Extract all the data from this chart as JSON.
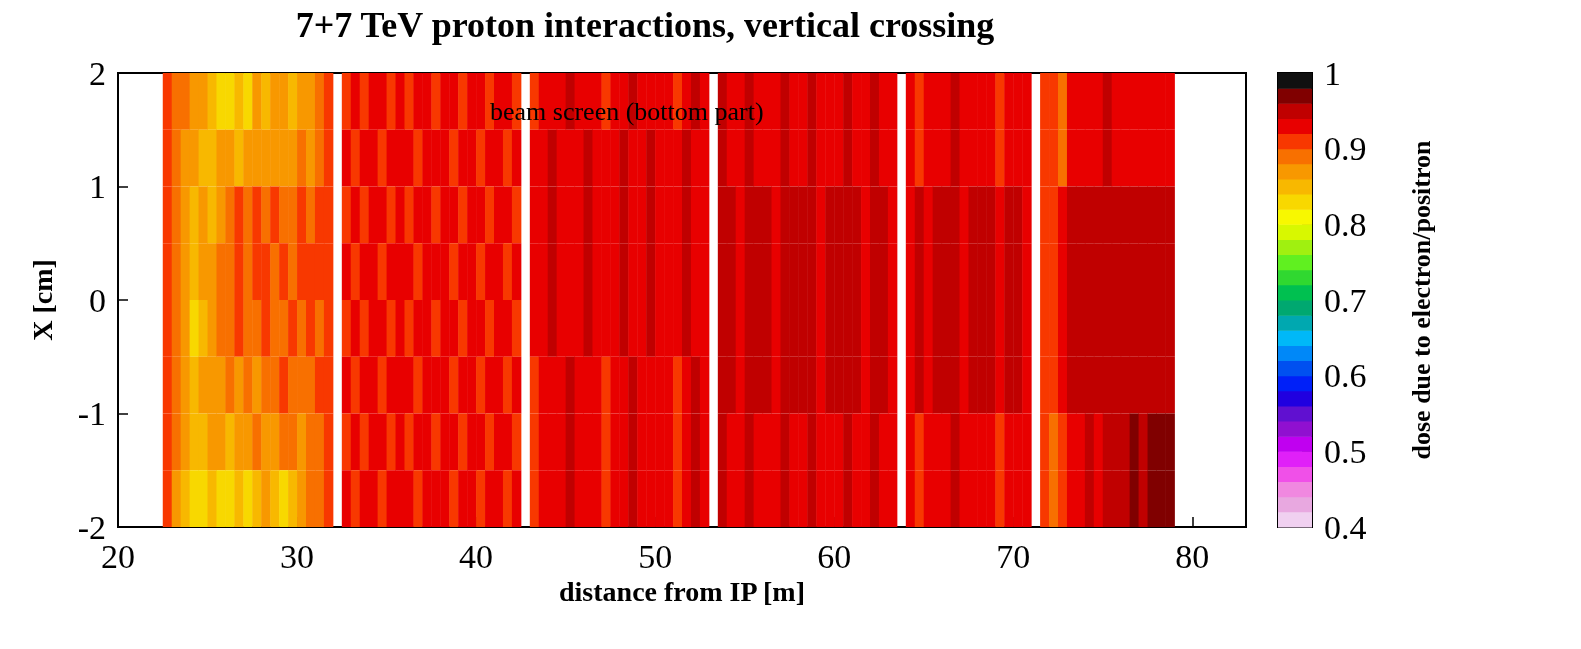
{
  "chart_data": {
    "type": "heatmap",
    "title": "7+7 TeV proton interactions, vertical crossing",
    "xlabel": "distance from IP [m]",
    "ylabel": "X [cm]",
    "clabel": "dose due to electron/positron",
    "annotations": [
      "beam screen (bottom part)"
    ],
    "cells": [
      [
        null,
        null,
        null,
        null,
        null,
        0.91,
        0.89,
        0.89,
        0.87,
        0.87,
        0.85,
        0.83,
        0.83,
        0.85,
        0.83,
        0.87,
        0.85,
        0.87,
        0.87,
        0.85,
        0.87,
        0.87,
        0.89,
        0.91,
        null,
        0.91,
        0.93,
        0.91,
        0.93,
        0.93,
        0.91,
        0.93,
        0.91,
        0.93,
        0.93,
        0.91,
        0.93,
        0.93,
        0.91,
        0.93,
        0.93,
        0.91,
        0.93,
        0.93,
        0.91,
        null,
        0.91,
        0.93,
        0.93,
        0.93,
        0.95,
        0.93,
        0.93,
        0.93,
        0.91,
        0.93,
        0.93,
        0.95,
        0.93,
        0.93,
        0.93,
        0.93,
        0.91,
        0.93,
        0.95,
        0.93,
        null,
        0.95,
        0.93,
        0.93,
        0.95,
        0.93,
        0.93,
        0.93,
        0.95,
        0.93,
        0.93,
        0.95,
        0.93,
        0.93,
        0.93,
        0.95,
        0.93,
        0.93,
        0.95,
        0.93,
        0.93,
        null,
        0.93,
        0.91,
        0.93,
        0.93,
        0.93,
        0.95,
        0.93,
        0.93,
        0.93,
        0.93,
        0.91,
        0.93,
        0.93,
        0.93,
        null,
        0.91,
        0.91,
        0.89,
        0.93,
        0.93,
        0.93,
        0.93,
        0.95,
        0.93,
        0.93,
        0.93,
        0.93,
        0.93,
        0.93,
        0.93,
        null,
        null,
        null,
        null,
        null,
        null,
        null,
        null
      ],
      [
        null,
        null,
        null,
        null,
        null,
        0.91,
        0.89,
        0.87,
        0.87,
        0.85,
        0.85,
        0.87,
        0.87,
        0.85,
        0.87,
        0.87,
        0.87,
        0.87,
        0.87,
        0.87,
        0.89,
        0.87,
        0.89,
        0.91,
        null,
        0.93,
        0.91,
        0.93,
        0.93,
        0.91,
        0.93,
        0.93,
        0.93,
        0.91,
        0.93,
        0.93,
        0.93,
        0.91,
        0.93,
        0.93,
        0.91,
        0.93,
        0.93,
        0.91,
        0.93,
        null,
        0.93,
        0.93,
        0.95,
        0.93,
        0.93,
        0.93,
        0.95,
        0.93,
        0.93,
        0.93,
        0.95,
        0.93,
        0.93,
        0.95,
        0.93,
        0.93,
        0.93,
        0.95,
        0.93,
        0.93,
        null,
        0.95,
        0.93,
        0.93,
        0.95,
        0.93,
        0.93,
        0.93,
        0.95,
        0.93,
        0.93,
        0.95,
        0.93,
        0.93,
        0.93,
        0.95,
        0.93,
        0.93,
        0.95,
        0.93,
        0.93,
        null,
        0.93,
        0.91,
        0.93,
        0.93,
        0.93,
        0.95,
        0.93,
        0.93,
        0.93,
        0.93,
        0.91,
        0.93,
        0.93,
        0.93,
        null,
        0.91,
        0.91,
        0.89,
        0.93,
        0.93,
        0.93,
        0.93,
        0.95,
        0.93,
        0.93,
        0.93,
        0.93,
        0.93,
        0.93,
        0.93,
        null,
        null,
        null,
        null,
        null,
        null,
        null,
        null
      ],
      [
        null,
        null,
        null,
        null,
        null,
        0.91,
        0.89,
        0.87,
        0.85,
        0.87,
        0.85,
        0.87,
        0.89,
        0.91,
        0.89,
        0.91,
        0.89,
        0.91,
        0.89,
        0.89,
        0.91,
        0.89,
        0.91,
        0.91,
        null,
        0.91,
        0.93,
        0.91,
        0.93,
        0.93,
        0.91,
        0.93,
        0.91,
        0.93,
        0.93,
        0.91,
        0.93,
        0.93,
        0.91,
        0.93,
        0.93,
        0.91,
        0.93,
        0.93,
        0.91,
        null,
        0.93,
        0.93,
        0.95,
        0.93,
        0.93,
        0.93,
        0.95,
        0.93,
        0.93,
        0.93,
        0.95,
        0.93,
        0.93,
        0.95,
        0.93,
        0.93,
        0.93,
        0.95,
        0.93,
        0.93,
        null,
        0.95,
        0.95,
        0.93,
        0.95,
        0.95,
        0.95,
        0.93,
        0.95,
        0.95,
        0.95,
        0.95,
        0.93,
        0.95,
        0.95,
        0.95,
        0.95,
        0.93,
        0.95,
        0.95,
        0.93,
        null,
        0.93,
        0.95,
        0.93,
        0.95,
        0.95,
        0.95,
        0.93,
        0.95,
        0.95,
        0.95,
        0.93,
        0.95,
        0.95,
        0.93,
        null,
        0.91,
        0.91,
        0.93,
        0.95,
        0.95,
        0.95,
        0.95,
        0.95,
        0.95,
        0.95,
        0.95,
        0.95,
        0.95,
        0.95,
        0.95,
        null,
        null,
        null,
        null,
        null,
        null,
        null,
        null
      ],
      [
        null,
        null,
        null,
        null,
        null,
        0.91,
        0.89,
        0.87,
        0.85,
        0.87,
        0.87,
        0.89,
        0.89,
        0.91,
        0.89,
        0.91,
        0.91,
        0.89,
        0.91,
        0.89,
        0.91,
        0.91,
        0.91,
        0.91,
        null,
        0.93,
        0.91,
        0.93,
        0.93,
        0.91,
        0.93,
        0.93,
        0.93,
        0.91,
        0.93,
        0.93,
        0.93,
        0.91,
        0.93,
        0.93,
        0.91,
        0.93,
        0.93,
        0.91,
        0.93,
        null,
        0.93,
        0.93,
        0.95,
        0.93,
        0.93,
        0.93,
        0.95,
        0.93,
        0.93,
        0.93,
        0.95,
        0.93,
        0.93,
        0.95,
        0.93,
        0.93,
        0.93,
        0.95,
        0.93,
        0.93,
        null,
        0.95,
        0.95,
        0.93,
        0.95,
        0.95,
        0.95,
        0.93,
        0.95,
        0.95,
        0.95,
        0.95,
        0.93,
        0.95,
        0.95,
        0.95,
        0.95,
        0.93,
        0.95,
        0.95,
        0.93,
        null,
        0.93,
        0.95,
        0.93,
        0.95,
        0.95,
        0.95,
        0.93,
        0.95,
        0.95,
        0.95,
        0.93,
        0.95,
        0.95,
        0.93,
        null,
        0.91,
        0.91,
        0.93,
        0.95,
        0.95,
        0.95,
        0.95,
        0.95,
        0.95,
        0.95,
        0.95,
        0.95,
        0.95,
        0.95,
        0.95,
        null,
        null,
        null,
        null,
        null,
        null,
        null,
        null
      ],
      [
        null,
        null,
        null,
        null,
        null,
        0.91,
        0.89,
        0.87,
        0.83,
        0.85,
        0.87,
        0.89,
        0.89,
        0.91,
        0.89,
        0.89,
        0.91,
        0.89,
        0.89,
        0.91,
        0.89,
        0.91,
        0.89,
        0.91,
        null,
        0.91,
        0.93,
        0.91,
        0.93,
        0.93,
        0.91,
        0.93,
        0.91,
        0.93,
        0.93,
        0.91,
        0.93,
        0.93,
        0.91,
        0.93,
        0.93,
        0.91,
        0.93,
        0.93,
        0.91,
        null,
        0.93,
        0.93,
        0.95,
        0.93,
        0.93,
        0.93,
        0.95,
        0.93,
        0.93,
        0.93,
        0.95,
        0.93,
        0.93,
        0.95,
        0.93,
        0.93,
        0.93,
        0.95,
        0.93,
        0.93,
        null,
        0.95,
        0.95,
        0.93,
        0.95,
        0.95,
        0.95,
        0.93,
        0.95,
        0.95,
        0.95,
        0.95,
        0.93,
        0.95,
        0.95,
        0.95,
        0.95,
        0.93,
        0.95,
        0.95,
        0.93,
        null,
        0.93,
        0.95,
        0.93,
        0.95,
        0.95,
        0.95,
        0.93,
        0.95,
        0.95,
        0.95,
        0.93,
        0.95,
        0.95,
        0.93,
        null,
        0.91,
        0.91,
        0.93,
        0.95,
        0.95,
        0.95,
        0.95,
        0.95,
        0.95,
        0.95,
        0.95,
        0.95,
        0.95,
        0.95,
        0.95,
        null,
        null,
        null,
        null,
        null,
        null,
        null,
        null
      ],
      [
        null,
        null,
        null,
        null,
        null,
        0.91,
        0.89,
        0.87,
        0.85,
        0.87,
        0.87,
        0.87,
        0.89,
        0.87,
        0.89,
        0.87,
        0.89,
        0.89,
        0.91,
        0.89,
        0.89,
        0.89,
        0.91,
        0.91,
        null,
        0.93,
        0.91,
        0.93,
        0.93,
        0.91,
        0.93,
        0.93,
        0.93,
        0.91,
        0.93,
        0.93,
        0.93,
        0.91,
        0.93,
        0.93,
        0.91,
        0.93,
        0.93,
        0.91,
        0.93,
        null,
        0.91,
        0.93,
        0.93,
        0.93,
        0.95,
        0.93,
        0.93,
        0.93,
        0.91,
        0.93,
        0.93,
        0.95,
        0.93,
        0.93,
        0.93,
        0.93,
        0.91,
        0.93,
        0.95,
        0.93,
        null,
        0.95,
        0.95,
        0.93,
        0.95,
        0.95,
        0.95,
        0.93,
        0.95,
        0.95,
        0.95,
        0.95,
        0.93,
        0.95,
        0.95,
        0.95,
        0.95,
        0.93,
        0.95,
        0.95,
        0.93,
        null,
        0.93,
        0.95,
        0.93,
        0.95,
        0.95,
        0.95,
        0.93,
        0.95,
        0.95,
        0.95,
        0.93,
        0.95,
        0.95,
        0.93,
        null,
        0.91,
        0.91,
        0.93,
        0.95,
        0.95,
        0.95,
        0.95,
        0.95,
        0.95,
        0.95,
        0.95,
        0.95,
        0.95,
        0.95,
        0.95,
        null,
        null,
        null,
        null,
        null,
        null,
        null,
        null
      ],
      [
        null,
        null,
        null,
        null,
        null,
        0.91,
        0.89,
        0.87,
        0.85,
        0.85,
        0.87,
        0.87,
        0.85,
        0.87,
        0.87,
        0.89,
        0.87,
        0.87,
        0.89,
        0.89,
        0.87,
        0.89,
        0.89,
        0.91,
        null,
        0.91,
        0.93,
        0.91,
        0.93,
        0.93,
        0.91,
        0.93,
        0.91,
        0.93,
        0.93,
        0.91,
        0.93,
        0.93,
        0.91,
        0.93,
        0.93,
        0.91,
        0.93,
        0.93,
        0.91,
        null,
        0.91,
        0.93,
        0.93,
        0.93,
        0.95,
        0.93,
        0.93,
        0.93,
        0.91,
        0.93,
        0.93,
        0.95,
        0.93,
        0.93,
        0.93,
        0.93,
        0.91,
        0.93,
        0.95,
        0.93,
        null,
        0.95,
        0.93,
        0.93,
        0.95,
        0.93,
        0.93,
        0.93,
        0.95,
        0.93,
        0.93,
        0.95,
        0.93,
        0.93,
        0.93,
        0.95,
        0.93,
        0.93,
        0.95,
        0.93,
        0.93,
        null,
        0.93,
        0.91,
        0.93,
        0.93,
        0.93,
        0.95,
        0.93,
        0.93,
        0.93,
        0.93,
        0.91,
        0.93,
        0.93,
        0.93,
        null,
        0.91,
        0.89,
        0.91,
        0.93,
        0.93,
        0.95,
        0.93,
        0.95,
        0.95,
        0.95,
        0.97,
        0.95,
        0.97,
        0.97,
        0.97,
        null,
        null,
        null,
        null,
        null,
        null,
        null,
        null
      ],
      [
        null,
        null,
        null,
        null,
        null,
        0.91,
        0.87,
        0.85,
        0.83,
        0.83,
        0.85,
        0.83,
        0.83,
        0.85,
        0.83,
        0.85,
        0.87,
        0.85,
        0.83,
        0.85,
        0.87,
        0.89,
        0.89,
        0.91,
        null,
        0.93,
        0.91,
        0.93,
        0.93,
        0.91,
        0.93,
        0.93,
        0.93,
        0.91,
        0.93,
        0.93,
        0.93,
        0.91,
        0.93,
        0.93,
        0.91,
        0.93,
        0.93,
        0.91,
        0.93,
        null,
        0.91,
        0.93,
        0.93,
        0.93,
        0.95,
        0.93,
        0.93,
        0.93,
        0.91,
        0.93,
        0.93,
        0.95,
        0.93,
        0.93,
        0.93,
        0.93,
        0.91,
        0.93,
        0.95,
        0.93,
        null,
        0.95,
        0.93,
        0.93,
        0.95,
        0.93,
        0.93,
        0.93,
        0.95,
        0.93,
        0.93,
        0.95,
        0.93,
        0.93,
        0.93,
        0.95,
        0.93,
        0.93,
        0.95,
        0.93,
        0.93,
        null,
        0.93,
        0.91,
        0.93,
        0.93,
        0.93,
        0.95,
        0.93,
        0.93,
        0.93,
        0.93,
        0.91,
        0.93,
        0.93,
        0.93,
        null,
        0.91,
        0.89,
        0.91,
        0.93,
        0.93,
        0.95,
        0.93,
        0.95,
        0.95,
        0.95,
        0.97,
        0.95,
        0.97,
        0.97,
        0.97,
        null,
        null,
        null,
        null,
        null,
        null,
        null,
        null
      ]
    ],
    "xlim": [
      20,
      83
    ],
    "xticks": [
      20,
      30,
      40,
      50,
      60,
      70,
      80
    ],
    "ylim": [
      -2,
      2
    ],
    "yticks": [
      -2,
      -1,
      0,
      1,
      2
    ],
    "clim": [
      0.4,
      1
    ],
    "cticks": [
      0.4,
      0.5,
      0.6,
      0.7,
      0.8,
      0.9,
      1
    ]
  }
}
